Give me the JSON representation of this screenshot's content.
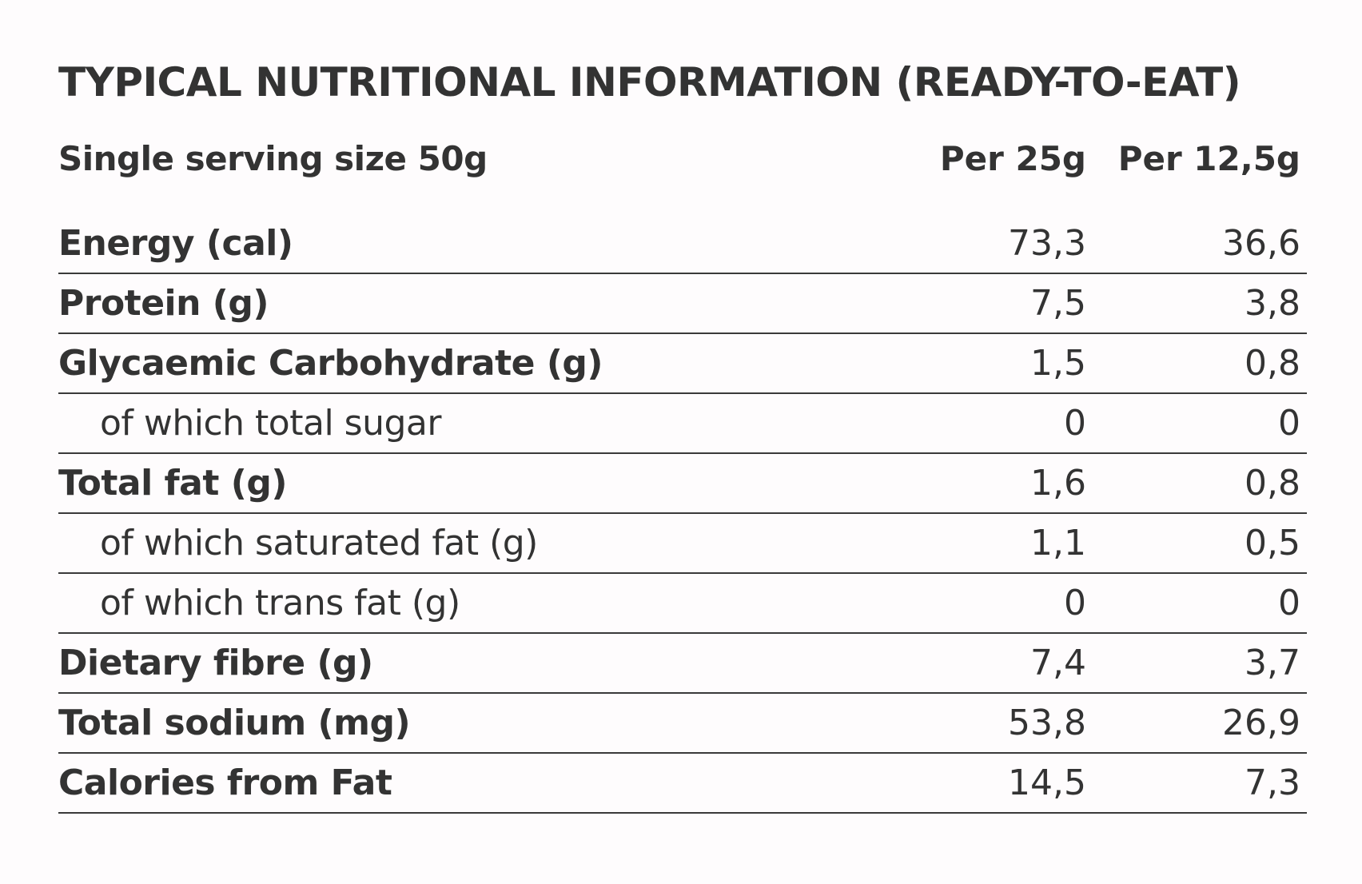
{
  "title": "TYPICAL NUTRITIONAL INFORMATION (READY-TO-EAT)",
  "header": {
    "label": "Single serving size 50g",
    "col_a": "Per 25g",
    "col_b": "Per 12,5g"
  },
  "rows": [
    {
      "label": "Energy (cal)",
      "a": "73,3",
      "b": "36,6"
    },
    {
      "label": "Protein (g)",
      "a": "7,5",
      "b": "3,8"
    },
    {
      "label": "Glycaemic Carbohydrate (g)",
      "a": "1,5",
      "b": "0,8"
    },
    {
      "label": "of which total sugar",
      "a": "0",
      "b": "0"
    },
    {
      "label": "Total fat (g)",
      "a": "1,6",
      "b": "0,8"
    },
    {
      "label": "of which saturated fat (g)",
      "a": "1,1",
      "b": "0,5"
    },
    {
      "label": "of which trans fat (g)",
      "a": "0",
      "b": "0"
    },
    {
      "label": "Dietary fibre (g)",
      "a": "7,4",
      "b": "3,7"
    },
    {
      "label": "Total sodium (mg)",
      "a": "53,8",
      "b": "26,9"
    },
    {
      "label": "Calories from Fat",
      "a": "14,5",
      "b": "7,3"
    }
  ]
}
